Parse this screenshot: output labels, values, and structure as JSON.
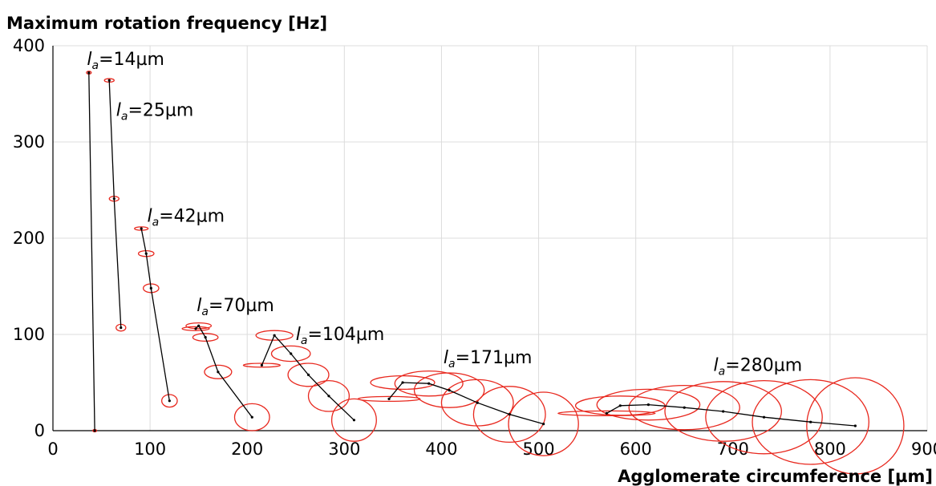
{
  "chart_data": {
    "type": "line",
    "title": "",
    "ylabel": "Maximum rotation frequency [Hz]",
    "xlabel": "Agglomerate circumference [µm]",
    "xlim": [
      0,
      900
    ],
    "ylim": [
      0,
      400
    ],
    "xticks": [
      0,
      100,
      200,
      300,
      400,
      500,
      600,
      700,
      800,
      900
    ],
    "yticks": [
      0,
      100,
      200,
      300,
      400
    ],
    "grid": true,
    "legend": "none",
    "point_color": "#000000",
    "ellipse_color": "#e8281e",
    "series": [
      {
        "annotation": {
          "prefix": "l",
          "subscript": "a",
          "text": "=14µm"
        },
        "annotation_at": {
          "x": 35,
          "y": 380
        },
        "points": [
          {
            "x": 37,
            "y": 372,
            "rx": 2.5,
            "ry": 1.5
          },
          {
            "x": 43,
            "y": 0,
            "rx": 2,
            "ry": 1.2
          }
        ]
      },
      {
        "annotation": {
          "prefix": "l",
          "subscript": "a",
          "text": "=25µm"
        },
        "annotation_at": {
          "x": 65,
          "y": 327
        },
        "points": [
          {
            "x": 58,
            "y": 364,
            "rx": 5,
            "ry": 1.8
          },
          {
            "x": 63,
            "y": 241,
            "rx": 5,
            "ry": 2.5
          },
          {
            "x": 70,
            "y": 107,
            "rx": 5,
            "ry": 3.5
          }
        ]
      },
      {
        "annotation": {
          "prefix": "l",
          "subscript": "a",
          "text": "=42µm"
        },
        "annotation_at": {
          "x": 97,
          "y": 217
        },
        "points": [
          {
            "x": 91,
            "y": 210,
            "rx": 7,
            "ry": 1.8
          },
          {
            "x": 96,
            "y": 184,
            "rx": 8,
            "ry": 3
          },
          {
            "x": 101,
            "y": 148,
            "rx": 8,
            "ry": 4.5
          },
          {
            "x": 120,
            "y": 31,
            "rx": 8,
            "ry": 6.5
          }
        ]
      },
      {
        "annotation": {
          "prefix": "l",
          "subscript": "a",
          "text": "=70µm"
        },
        "annotation_at": {
          "x": 148,
          "y": 124
        },
        "points": [
          {
            "x": 147,
            "y": 106,
            "rx": 14,
            "ry": 2
          },
          {
            "x": 150,
            "y": 109,
            "rx": 13,
            "ry": 3
          },
          {
            "x": 157,
            "y": 97,
            "rx": 13,
            "ry": 4
          },
          {
            "x": 170,
            "y": 61,
            "rx": 14,
            "ry": 7
          },
          {
            "x": 205,
            "y": 14,
            "rx": 18,
            "ry": 14
          }
        ]
      },
      {
        "annotation": {
          "prefix": "l",
          "subscript": "a",
          "text": "=104µm"
        },
        "annotation_at": {
          "x": 250,
          "y": 94
        },
        "points": [
          {
            "x": 215,
            "y": 68,
            "rx": 19,
            "ry": 2
          },
          {
            "x": 228,
            "y": 99,
            "rx": 19,
            "ry": 5
          },
          {
            "x": 245,
            "y": 80,
            "rx": 20,
            "ry": 8
          },
          {
            "x": 263,
            "y": 58,
            "rx": 21,
            "ry": 12
          },
          {
            "x": 284,
            "y": 36,
            "rx": 21,
            "ry": 16
          },
          {
            "x": 310,
            "y": 11,
            "rx": 23,
            "ry": 22
          }
        ]
      },
      {
        "annotation": {
          "prefix": "l",
          "subscript": "a",
          "text": "=171µm"
        },
        "annotation_at": {
          "x": 402,
          "y": 70
        },
        "points": [
          {
            "x": 346,
            "y": 33,
            "rx": 32,
            "ry": 2.5
          },
          {
            "x": 360,
            "y": 50,
            "rx": 33,
            "ry": 7
          },
          {
            "x": 387,
            "y": 49,
            "rx": 35,
            "ry": 13
          },
          {
            "x": 408,
            "y": 42,
            "rx": 36,
            "ry": 18
          },
          {
            "x": 437,
            "y": 29,
            "rx": 37,
            "ry": 24
          },
          {
            "x": 470,
            "y": 17,
            "rx": 37,
            "ry": 29
          },
          {
            "x": 505,
            "y": 7,
            "rx": 36,
            "ry": 33
          }
        ]
      },
      {
        "annotation": {
          "prefix": "l",
          "subscript": "a",
          "text": "=280µm"
        },
        "annotation_at": {
          "x": 680,
          "y": 62
        },
        "points": [
          {
            "x": 570,
            "y": 18,
            "rx": 50,
            "ry": 2.5
          },
          {
            "x": 584,
            "y": 26,
            "rx": 46,
            "ry": 10
          },
          {
            "x": 613,
            "y": 27,
            "rx": 53,
            "ry": 16
          },
          {
            "x": 650,
            "y": 24,
            "rx": 57,
            "ry": 23
          },
          {
            "x": 690,
            "y": 20,
            "rx": 60,
            "ry": 31
          },
          {
            "x": 732,
            "y": 14,
            "rx": 60,
            "ry": 38
          },
          {
            "x": 780,
            "y": 9,
            "rx": 60,
            "ry": 44
          },
          {
            "x": 826,
            "y": 5,
            "rx": 50,
            "ry": 50
          }
        ]
      }
    ]
  }
}
